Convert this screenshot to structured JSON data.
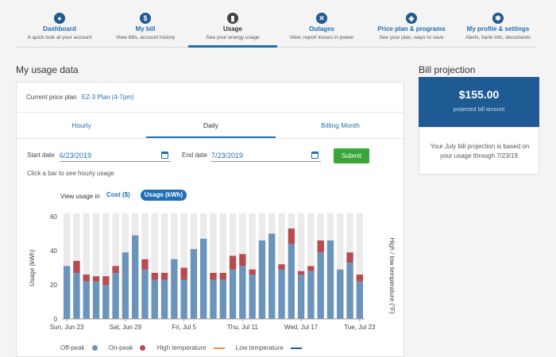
{
  "nav": {
    "items": [
      {
        "label": "Dashboard",
        "sub": "A quick look at your account",
        "icon": "user-icon"
      },
      {
        "label": "My bill",
        "sub": "View bills, account history",
        "icon": "dollar-icon"
      },
      {
        "label": "Usage",
        "sub": "See your energy usage",
        "icon": "bar-chart-icon"
      },
      {
        "label": "Outages",
        "sub": "View, report losses in power",
        "icon": "outage-icon"
      },
      {
        "label": "Price plan & programs",
        "sub": "See your plan, ways to save",
        "icon": "price-plan-icon"
      },
      {
        "label": "My profile & settings",
        "sub": "Alerts, bank info, documents",
        "icon": "gear-icon"
      }
    ],
    "active": "Usage"
  },
  "usage": {
    "title": "My usage data",
    "plan_label": "Current price plan",
    "plan_value": "EZ-3 Plan (4-7pm)",
    "tabs": [
      "Hourly",
      "Daily",
      "Billing Month"
    ],
    "active_tab": "Daily",
    "start_label": "Start date",
    "start_value": "6/23/2019",
    "end_label": "End date",
    "end_value": "7/23/2019",
    "submit_label": "Submit",
    "hint": "Click a bar to see hourly usage",
    "view_label": "View usage in",
    "cost_label": "Cost ($)",
    "kwh_label": "Usage (kWh)"
  },
  "chart_data": {
    "type": "bar",
    "stacked": true,
    "ylabel": "Usage (kWh)",
    "y2label": "High / low temperature (°F)",
    "ylim": [
      0,
      60
    ],
    "yticks": [
      0,
      20,
      40,
      60
    ],
    "grid": false,
    "xtick_labels": [
      {
        "index": 0,
        "label": "Sun, Jun 23"
      },
      {
        "index": 6,
        "label": "Sat, Jun 29"
      },
      {
        "index": 12,
        "label": "Fri, Jul 5"
      },
      {
        "index": 18,
        "label": "Thu, Jul 11"
      },
      {
        "index": 24,
        "label": "Wed, Jul 17"
      },
      {
        "index": 30,
        "label": "Tue, Jul 23"
      }
    ],
    "series": [
      {
        "name": "Off-peak",
        "color": "#6a94bc",
        "values": [
          31,
          27,
          22,
          22,
          20,
          27,
          39,
          49,
          29,
          23,
          23,
          35,
          23,
          41,
          47,
          23,
          23,
          29,
          31,
          26,
          46,
          50,
          29,
          44,
          26,
          28,
          39,
          46,
          29,
          33,
          22
        ]
      },
      {
        "name": "On-peak",
        "color": "#b94a4e",
        "values": [
          0,
          7,
          4,
          3,
          5,
          4,
          0,
          0,
          6,
          4,
          4,
          0,
          7,
          0,
          0,
          4,
          4,
          8,
          7,
          3,
          0,
          0,
          3,
          9,
          2,
          3,
          7,
          0,
          0,
          6,
          4
        ]
      }
    ],
    "background_max": 62,
    "legend": [
      "Off-peak",
      "On-peak",
      "High temperature",
      "Low temperature"
    ],
    "legend_placement": "bottom",
    "temperature_colors": {
      "high": "#e8933b",
      "low": "#1e5a93"
    }
  },
  "projection": {
    "title": "Bill projection",
    "amount": "$155.00",
    "amount_label": "projected bill amount",
    "text": "Your July bill projection is based on your usage through 7/23/19."
  }
}
